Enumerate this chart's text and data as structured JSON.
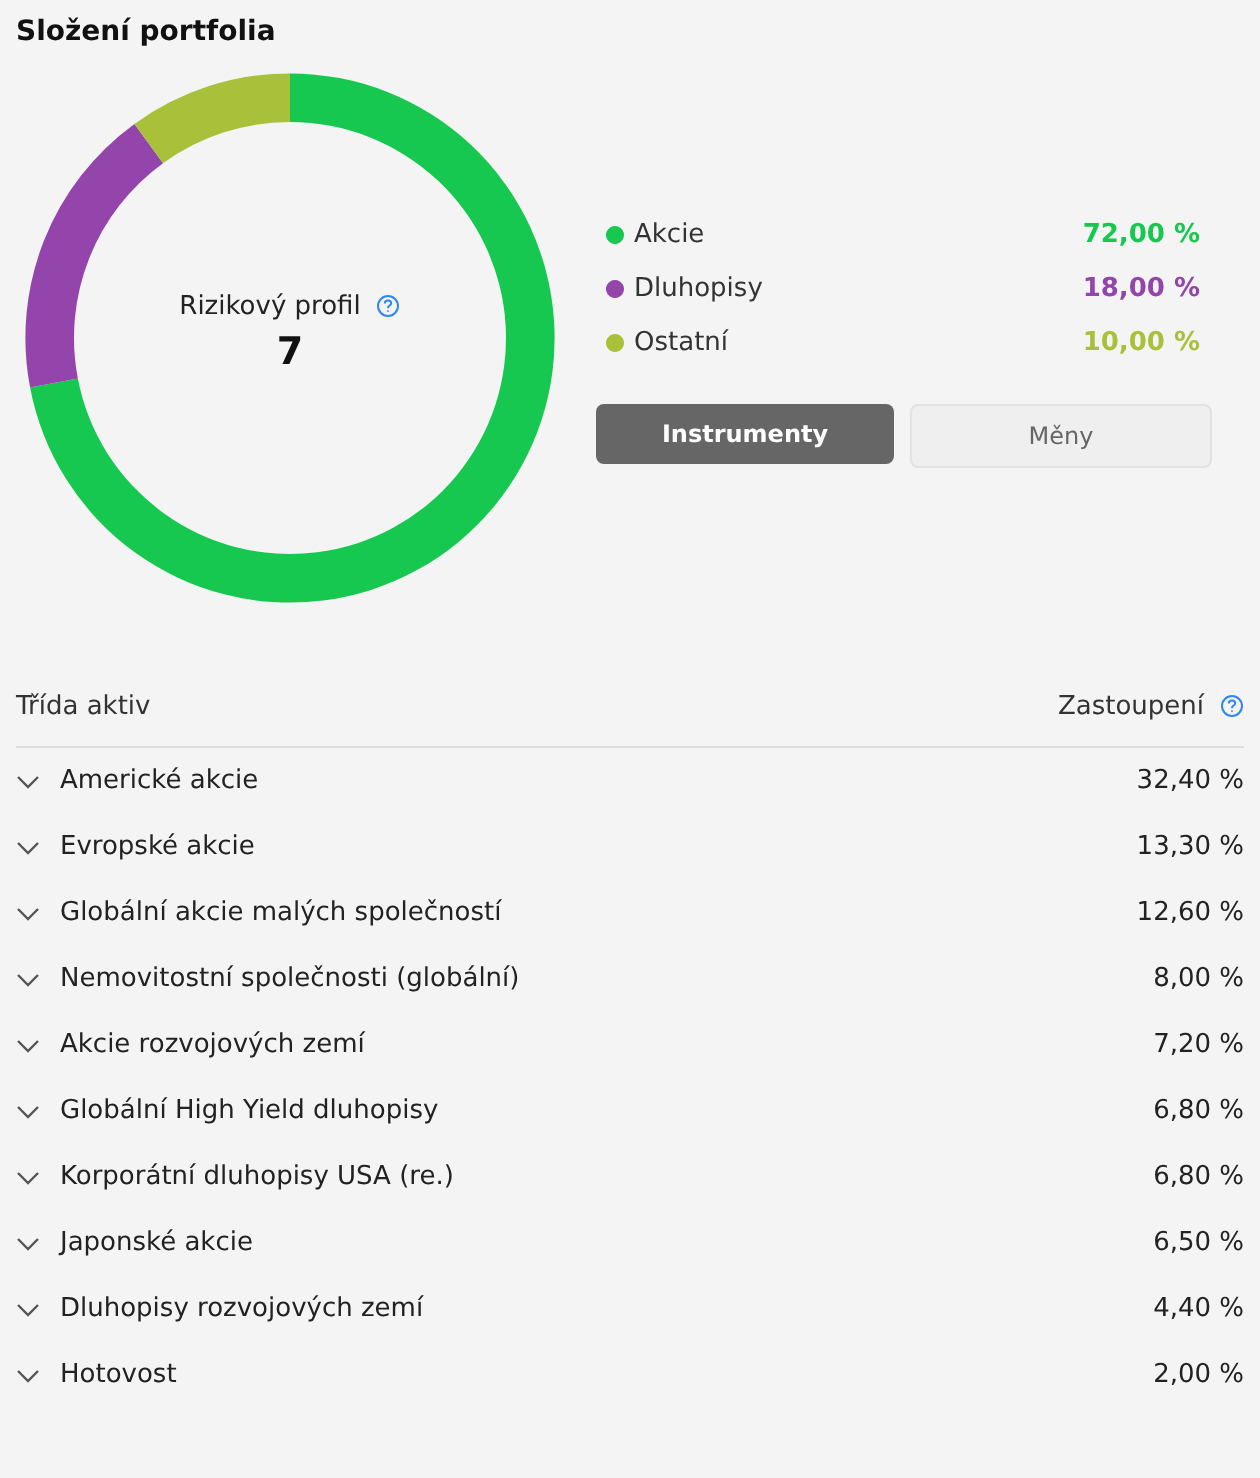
{
  "chart_data": [
    {
      "type": "donut",
      "title": "Složení portfolia",
      "categories": [
        "Akcie",
        "Dluhopisy",
        "Ostatní"
      ],
      "values": [
        72,
        18,
        10
      ],
      "colors": [
        "#16c84f",
        "#9445ab",
        "#a9c13a"
      ],
      "value_labels": [
        "72,00 %",
        "18,00 %",
        "10,00 %"
      ],
      "legend": "right",
      "annotations": [
        "Rizikový profil",
        "7",
        "Instrumenty",
        "Měny"
      ]
    },
    {
      "type": "other",
      "categories": [
        "Americké akcie",
        "Evropské akcie",
        "Globální akcie malých společností",
        "Nemovitostní společnosti (globální)",
        "Akcie rozvojových zemí",
        "Globální High Yield dluhopisy",
        "Korporátní dluhopisy USA (re.)",
        "Japonské akcie",
        "Dluhopisy rozvojových zemí",
        "Hotovost"
      ],
      "value_labels": [
        "32,40 %",
        "13,30 %",
        "12,60 %",
        "8,00 %",
        "7,20 %",
        "6,80 %",
        "6,80 %",
        "6,50 %",
        "4,40 %",
        "2,00 %"
      ],
      "annotations": [
        "Třída aktiv",
        "Zastoupení"
      ]
    }
  ]
}
